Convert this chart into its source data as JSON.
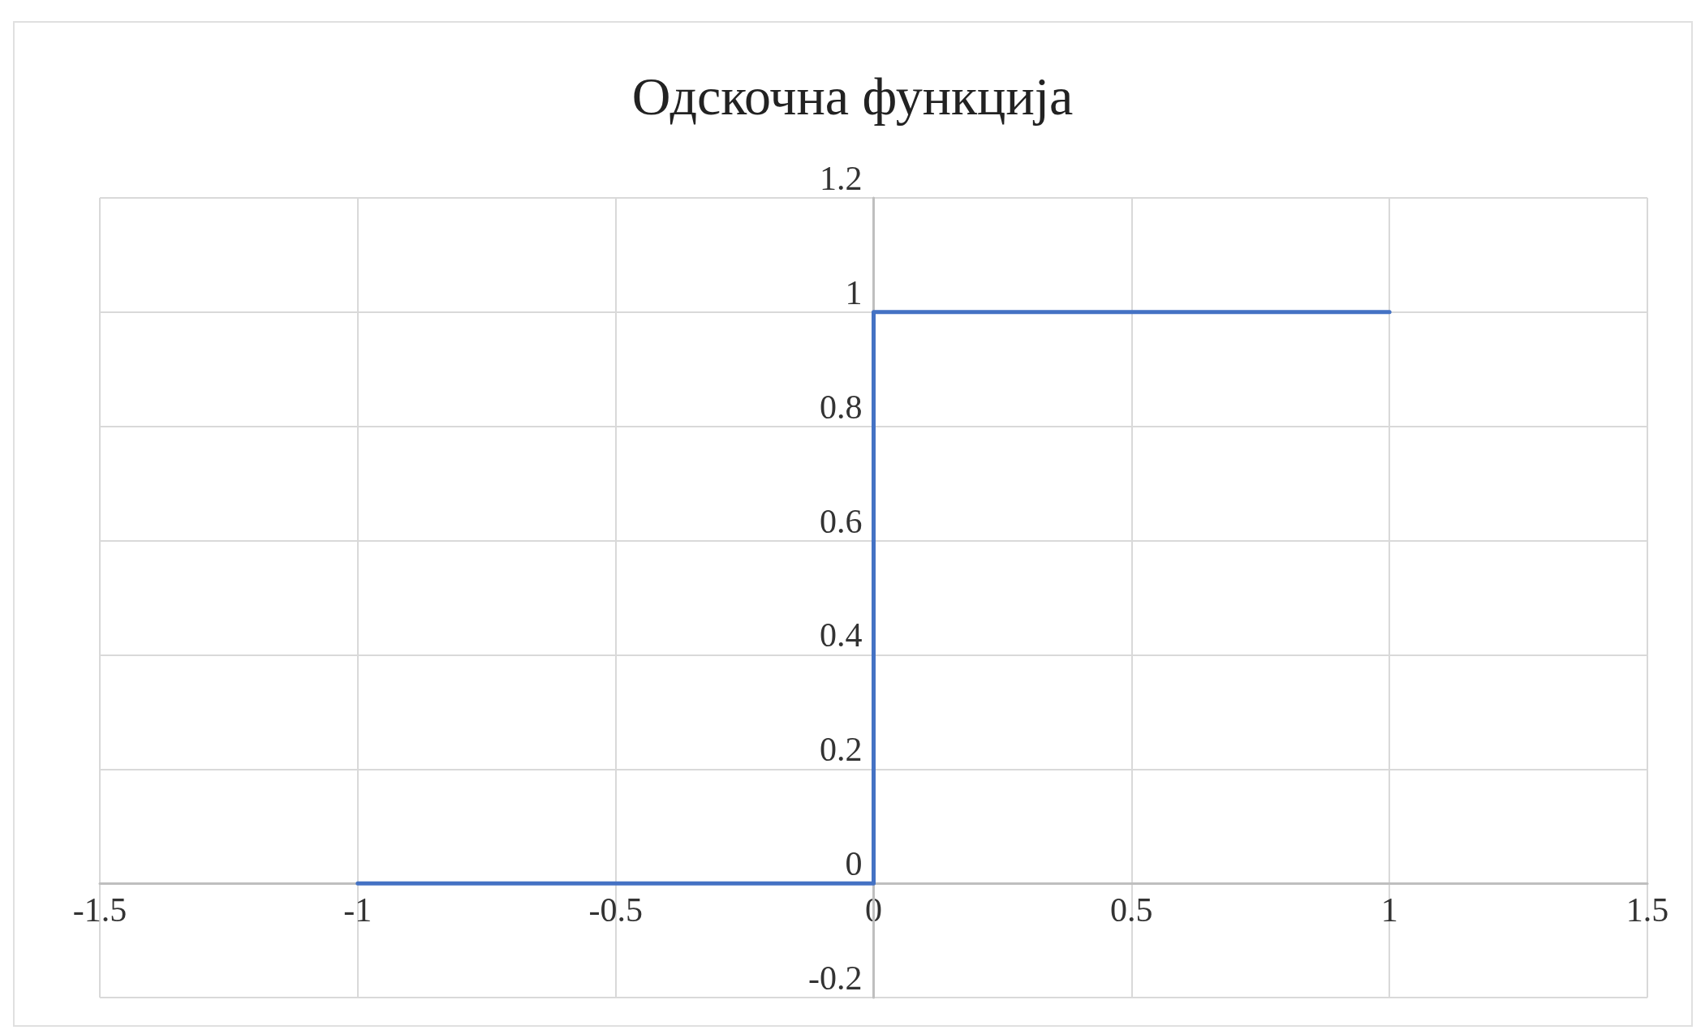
{
  "chart_data": {
    "type": "line",
    "title": "Одскочна функција",
    "series": [
      {
        "color": "#4472c4",
        "x": [
          -1,
          0,
          0,
          1
        ],
        "values": [
          0,
          0,
          1,
          1
        ]
      }
    ],
    "xlim": [
      -1.5,
      1.5
    ],
    "xticks": [
      -1.5,
      -1,
      -0.5,
      0,
      0.5,
      1,
      1.5
    ],
    "ylim": [
      -0.2,
      1.2
    ],
    "yticks": [
      -0.2,
      0,
      0.2,
      0.4,
      0.6,
      0.8,
      1,
      1.2
    ],
    "grid": true,
    "marker": "none",
    "line_style": "solid"
  }
}
